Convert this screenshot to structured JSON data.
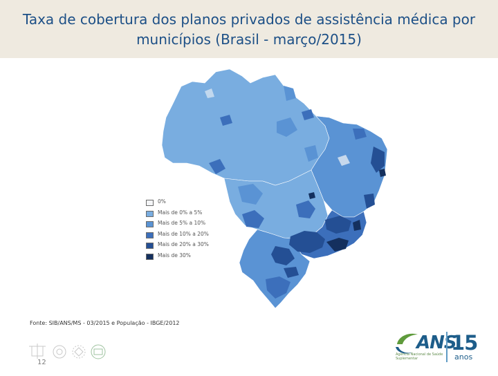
{
  "header": {
    "title_line1": "Taxa de cobertura dos planos privados de assistência médica por",
    "title_line2": "municípios (Brasil - março/2015)"
  },
  "colors": {
    "title_band": "#efeae0",
    "title_text": "#1c4f86",
    "class_0": "#f4f5f7",
    "class_1": "#79ade0",
    "class_2": "#5a93d4",
    "class_3": "#3c6fbb",
    "class_4": "#244f94",
    "class_5": "#14305e"
  },
  "map": {
    "legend": [
      {
        "label": "0%",
        "color": "#f4f5f7"
      },
      {
        "label": "Mais de 0% a 5%",
        "color": "#79ade0"
      },
      {
        "label": "Mais de 5% a 10%",
        "color": "#5a93d4"
      },
      {
        "label": "Mais de 10% a 20%",
        "color": "#3c6fbb"
      },
      {
        "label": "Mais de 20% a 30%",
        "color": "#244f94"
      },
      {
        "label": "Mais de 30%",
        "color": "#14305e"
      }
    ]
  },
  "source": "Fonte: SIB/ANS/MS - 03/2015 e População - IBGE/2012",
  "footer": {
    "page_number": "12",
    "logo_mark": "ANS",
    "logo_subtitle": "Agência Nacional de Saúde Suplementar",
    "years_number": "15",
    "years_word": "anos",
    "footer_icons": [
      "seal-icon",
      "flower-emblem-icon",
      "wreath-icon",
      "shield-badge-icon"
    ]
  }
}
